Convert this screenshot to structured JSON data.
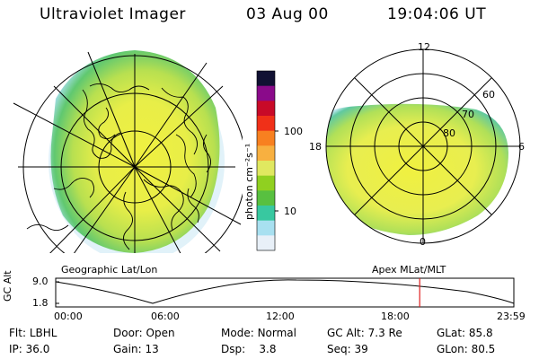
{
  "header": {
    "instrument": "Ultraviolet Imager",
    "date": "03 Aug 00",
    "time": "19:04:06 UT"
  },
  "left_panel": {
    "caption": "Geographic Lat/Lon",
    "projection": "geographic-polar"
  },
  "colorbar": {
    "unit_label": "photon cm⁻²s⁻¹",
    "ticks": [
      "100",
      "10"
    ],
    "scale": "log",
    "colors": [
      "#111133",
      "#8a0a8a",
      "#c80a28",
      "#f03018",
      "#f88020",
      "#f8b040",
      "#e0e860",
      "#90d020",
      "#58c040",
      "#38c8a0",
      "#a8e0f0",
      "#e8f0f8"
    ]
  },
  "right_panel": {
    "caption": "Apex MLat/MLT",
    "mlt_labels": {
      "top": "12",
      "left": "18",
      "right": "6",
      "bottom": "0"
    },
    "mlat_labels": [
      "60",
      "70",
      "80"
    ]
  },
  "timeline": {
    "ylabel": "GC Alt",
    "y_ticks": [
      "9.0",
      "1.8"
    ],
    "x_ticks": [
      "00:00",
      "06:00",
      "12:00",
      "18:00",
      "23:59"
    ],
    "marker_time": "19:04",
    "marker_color": "#e02020"
  },
  "status": {
    "row1": [
      {
        "key": "Flt:",
        "val": "LBHL"
      },
      {
        "key": "Door:",
        "val": "Open"
      },
      {
        "key": "Mode:",
        "val": "Normal"
      },
      {
        "key": "GC Alt:",
        "val": "7.3 Re"
      },
      {
        "key": "GLat:",
        "val": "85.8"
      }
    ],
    "row2": [
      {
        "key": "IP:",
        "val": "36.0"
      },
      {
        "key": "Gain:",
        "val": "13"
      },
      {
        "key": "Dsp:",
        "val": "3.8"
      },
      {
        "key": "Seq:",
        "val": "39"
      },
      {
        "key": "GLon:",
        "val": "80.5"
      }
    ]
  }
}
